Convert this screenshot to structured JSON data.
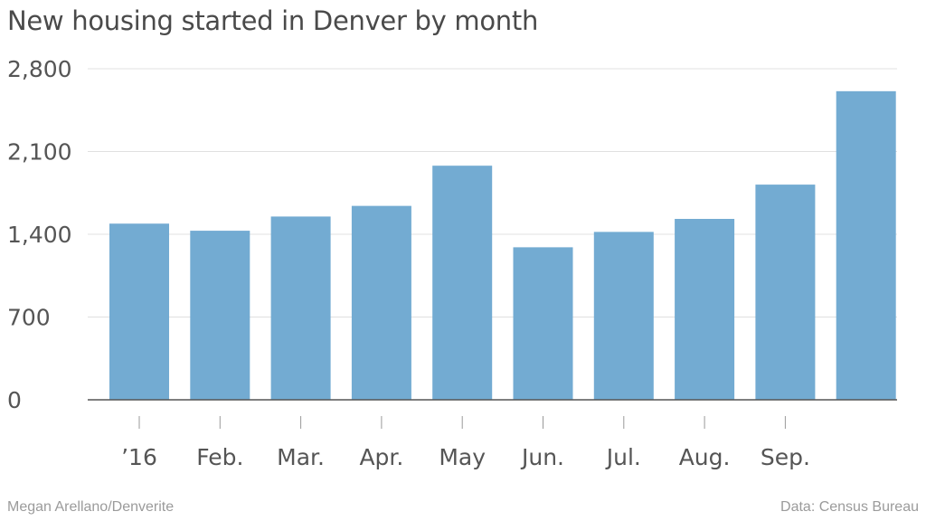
{
  "title": "New housing started in Denver by month",
  "footer": {
    "credit": "Megan Arellano/Denverite",
    "source": "Data: Census Bureau"
  },
  "colors": {
    "bar": "#73abd2",
    "grid": "#e0e0e0",
    "axis": "#555555",
    "tick_text": "#555555"
  },
  "chart_data": {
    "type": "bar",
    "categories": [
      "’16",
      "Feb.",
      "Mar.",
      "Apr.",
      "May",
      "Jun.",
      "Jul.",
      "Aug.",
      "Sep.",
      ""
    ],
    "values": [
      1490,
      1430,
      1550,
      1640,
      1980,
      1290,
      1420,
      1530,
      1820,
      2610
    ],
    "yticks": [
      0,
      700,
      1400,
      2100,
      2800
    ],
    "ytick_labels": [
      "0",
      "700",
      "1,400",
      "2,100",
      "2,800"
    ],
    "ylim": [
      0,
      2800
    ],
    "grid": true
  }
}
